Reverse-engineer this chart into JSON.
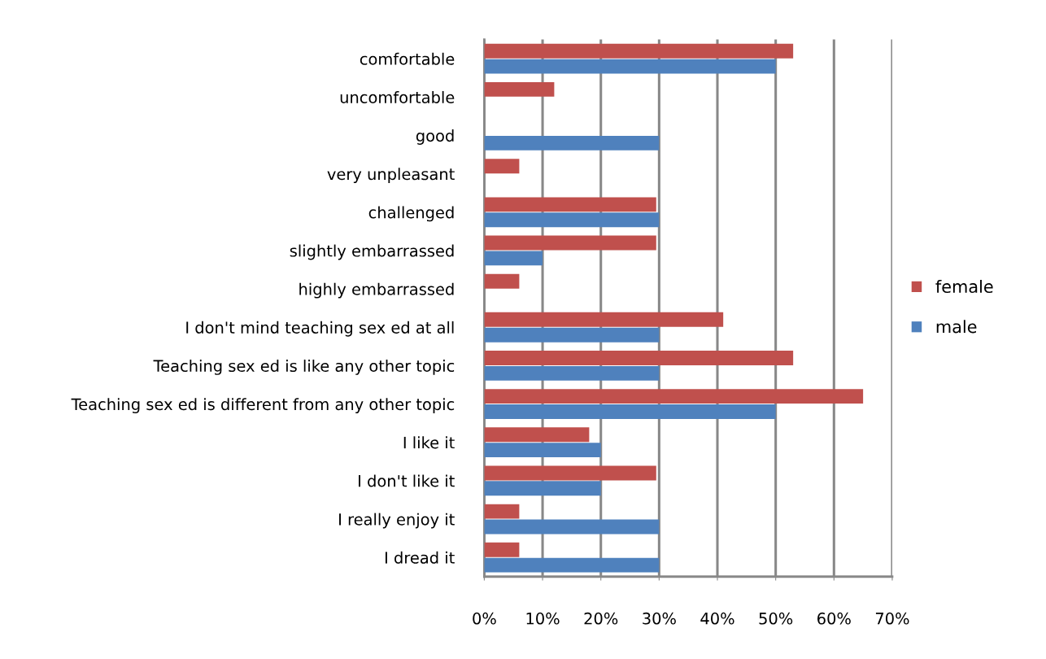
{
  "chart_data": {
    "type": "bar",
    "orientation": "horizontal",
    "categories": [
      "comfortable",
      "uncomfortable",
      "good",
      "very unpleasant",
      "challenged",
      "slightly embarrassed",
      "highly embarrassed",
      "I don't mind teaching sex ed at all",
      "Teaching sex ed is like any other topic",
      "Teaching sex ed is different from any other topic",
      "I like it",
      "I don't like it",
      "I really enjoy it",
      "I dread it"
    ],
    "series": [
      {
        "name": "female",
        "color": "#c0504d",
        "values": [
          53,
          12,
          0,
          6,
          29.5,
          29.5,
          6,
          41,
          53,
          65,
          18,
          29.5,
          6,
          6
        ]
      },
      {
        "name": "male",
        "color": "#4f81bd",
        "values": [
          50,
          0,
          30,
          0,
          30,
          10,
          0,
          30,
          30,
          50,
          20,
          20,
          30,
          30
        ]
      }
    ],
    "xlim": [
      0,
      70
    ],
    "xticks": [
      {
        "value": 0,
        "label": "0%"
      },
      {
        "value": 10,
        "label": "10%"
      },
      {
        "value": 20,
        "label": "20%"
      },
      {
        "value": 30,
        "label": "30%"
      },
      {
        "value": 40,
        "label": "40%"
      },
      {
        "value": 50,
        "label": "50%"
      },
      {
        "value": 60,
        "label": "60%"
      },
      {
        "value": 70,
        "label": "70%"
      }
    ],
    "grid": "x",
    "legend": "right"
  }
}
